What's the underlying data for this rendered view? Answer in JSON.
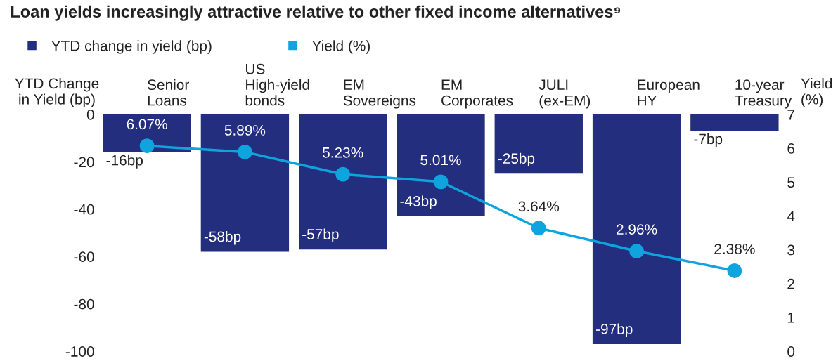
{
  "chart_data": {
    "type": "bar",
    "title": "Loan yields increasingly attractive relative to other fixed income alternatives⁹",
    "categories": [
      "Senior\nLoans",
      "US\nHigh-yield\nbonds",
      "EM\nSovereigns",
      "EM\nCorporates",
      "JULI\n(ex-EM)",
      "European\nHY",
      "10-year\nTreasury"
    ],
    "series": [
      {
        "name": "YTD change in yield (bp)",
        "color": "#232f7e",
        "values": [
          -16,
          -58,
          -57,
          -43,
          -25,
          -97,
          -7
        ],
        "value_labels": [
          "-16bp",
          "-58bp",
          "-57bp",
          "-43bp",
          "-25bp",
          "-97bp",
          "-7bp"
        ]
      },
      {
        "name": "Yield (%)",
        "color": "#0ea5de",
        "type": "line",
        "axis": "y2",
        "marker": "circle",
        "values": [
          6.07,
          5.89,
          5.23,
          5.01,
          3.64,
          2.96,
          2.38
        ],
        "value_labels": [
          "6.07%",
          "5.89%",
          "5.23%",
          "5.01%",
          "3.64%",
          "2.96%",
          "2.38%"
        ]
      }
    ],
    "ylabel": "YTD Change\nin Yield (bp)",
    "y2label": "Yield\n(%)",
    "ylim": [
      -100,
      0
    ],
    "yticks": [
      0,
      -20,
      -40,
      -60,
      -80,
      -100
    ],
    "y2lim": [
      0,
      7
    ],
    "y2ticks": [
      0,
      1,
      2,
      3,
      4,
      5,
      6,
      7
    ],
    "legend": "top left",
    "grid": false
  }
}
